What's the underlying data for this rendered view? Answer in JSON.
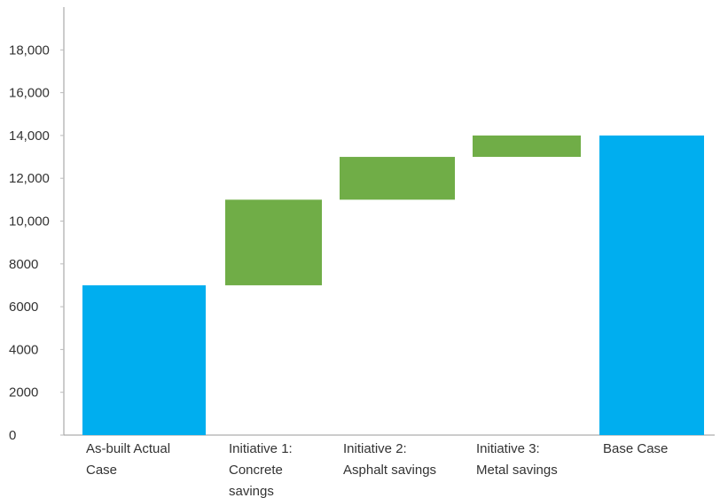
{
  "chart_data": {
    "type": "bar",
    "subtype": "waterfall",
    "categories": [
      [
        "As-built Actual",
        "Case"
      ],
      [
        "Initiative 1:",
        "Concrete",
        "savings"
      ],
      [
        "Initiative 2:",
        "Asphalt savings"
      ],
      [
        "Initiative 3:",
        "Metal savings"
      ],
      [
        "Base Case"
      ]
    ],
    "bars": [
      {
        "base": 0,
        "top": 7000,
        "kind": "total"
      },
      {
        "base": 7000,
        "top": 11000,
        "kind": "delta"
      },
      {
        "base": 11000,
        "top": 13000,
        "kind": "delta"
      },
      {
        "base": 13000,
        "top": 14000,
        "kind": "delta"
      },
      {
        "base": 0,
        "top": 14000,
        "kind": "total"
      }
    ],
    "colors": {
      "total": "#00AEEF",
      "delta": "#70AD47"
    },
    "yticks": [
      {
        "value": 0,
        "label": "0"
      },
      {
        "value": 2000,
        "label": "2000"
      },
      {
        "value": 4000,
        "label": "4000"
      },
      {
        "value": 6000,
        "label": "6000"
      },
      {
        "value": 8000,
        "label": "8000"
      },
      {
        "value": 10000,
        "label": "10,000"
      },
      {
        "value": 12000,
        "label": "12,000"
      },
      {
        "value": 14000,
        "label": "14,000"
      },
      {
        "value": 16000,
        "label": "16,000"
      },
      {
        "value": 18000,
        "label": "18,000"
      }
    ],
    "ylim": [
      0,
      20000
    ],
    "grid": false,
    "legend": "none"
  }
}
